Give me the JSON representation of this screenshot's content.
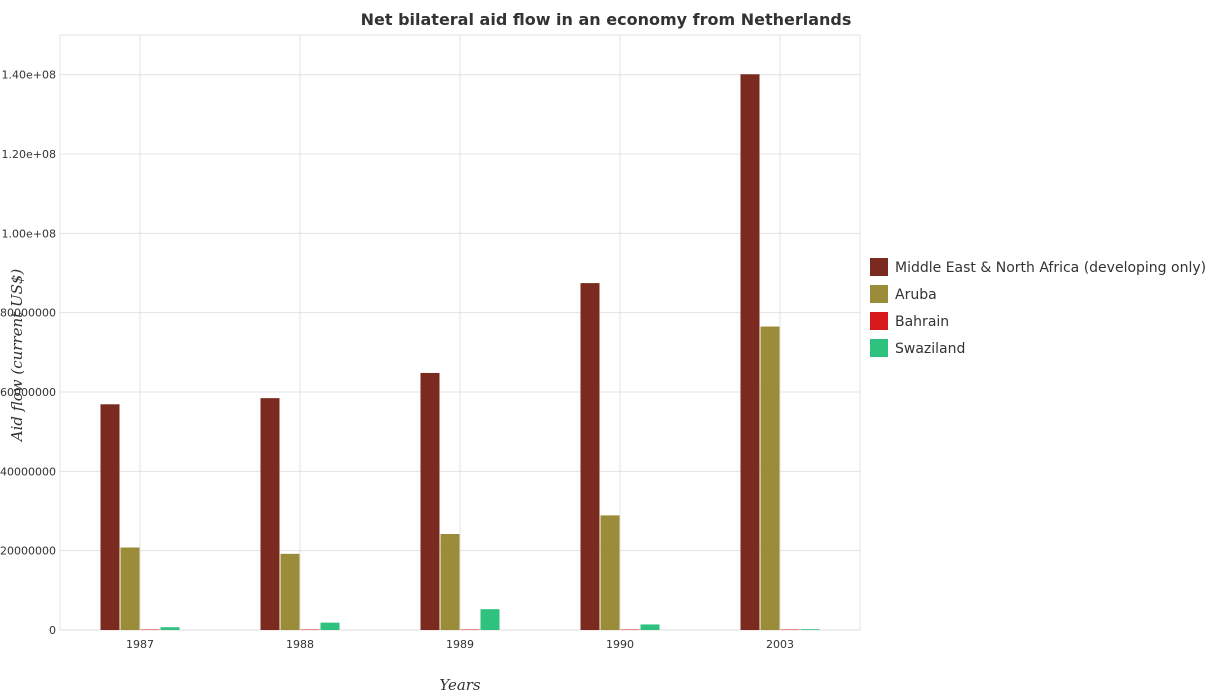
{
  "chart_data": {
    "type": "bar",
    "title": "Net bilateral aid flow in an economy from Netherlands",
    "xlabel": "Years",
    "ylabel": "Aid flow (current US$)",
    "categories": [
      "1987",
      "1988",
      "1989",
      "1990",
      "2003"
    ],
    "ylim": [
      0,
      150000000
    ],
    "yticks": [
      0,
      20000000,
      40000000,
      60000000,
      80000000,
      100000000,
      120000000,
      140000000
    ],
    "ytick_labels": [
      "0",
      "20000000",
      "40000000",
      "60000000",
      "80000000",
      "1.00e+08",
      "1.20e+08",
      "1.40e+08"
    ],
    "grid": true,
    "legend_position": "right",
    "series": [
      {
        "name": "Middle East & North Africa (developing only)",
        "color": "#7a2a1e",
        "values": [
          56900000,
          58450000,
          64800000,
          87450000,
          140100000
        ]
      },
      {
        "name": "Aruba",
        "color": "#9b8c3a",
        "values": [
          20800000,
          19200000,
          24200000,
          28900000,
          76500000
        ]
      },
      {
        "name": "Bahrain",
        "color": "#d7191c",
        "values": [
          20000,
          10000,
          10000,
          10000,
          30000
        ]
      },
      {
        "name": "Swaziland",
        "color": "#2ec27e",
        "values": [
          700000,
          1850000,
          5250000,
          1400000,
          200000
        ]
      }
    ]
  }
}
